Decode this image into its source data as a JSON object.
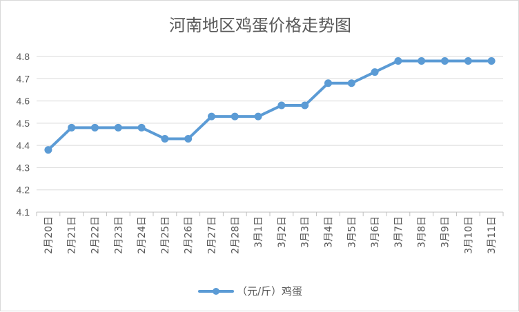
{
  "chart_data": {
    "type": "line",
    "title": "河南地区鸡蛋价格走势图",
    "xlabel": "",
    "ylabel": "",
    "ylim": [
      4.1,
      4.8
    ],
    "yticks": [
      "4.1",
      "4.2",
      "4.3",
      "4.4",
      "4.5",
      "4.6",
      "4.7",
      "4.8"
    ],
    "categories": [
      "2月20日",
      "2月21日",
      "2月22日",
      "2月23日",
      "2月24日",
      "2月25日",
      "2月26日",
      "2月27日",
      "2月28日",
      "3月1日",
      "3月2日",
      "3月3日",
      "3月4日",
      "3月5日",
      "3月6日",
      "3月7日",
      "3月8日",
      "3月9日",
      "3月10日",
      "3月11日"
    ],
    "series": [
      {
        "name": "（元/斤）鸡蛋",
        "color": "#5b9bd5",
        "values": [
          4.38,
          4.48,
          4.48,
          4.48,
          4.48,
          4.43,
          4.43,
          4.53,
          4.53,
          4.53,
          4.58,
          4.58,
          4.68,
          4.68,
          4.73,
          4.78,
          4.78,
          4.78,
          4.78,
          4.78
        ]
      }
    ],
    "grid": true,
    "legend_position": "bottom"
  }
}
